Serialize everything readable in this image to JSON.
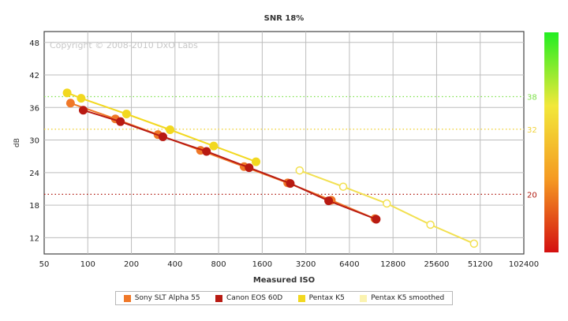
{
  "chart_data": {
    "type": "line",
    "title": "SNR 18%",
    "xlabel": "Measured ISO",
    "ylabel": "dB",
    "x_scale": "log2",
    "xlim": [
      50,
      102400
    ],
    "ylim": [
      9,
      50
    ],
    "x_ticks": [
      "50",
      "100",
      "200",
      "400",
      "800",
      "1600",
      "3200",
      "6400",
      "12800",
      "25600",
      "51200",
      "102400"
    ],
    "y_ticks": [
      "12",
      "18",
      "24",
      "30",
      "36",
      "42",
      "48"
    ],
    "watermark": "Copyright © 2008-2010 DxO Labs",
    "grid": true,
    "reference_lines": [
      {
        "value": 38,
        "label": "38",
        "color": "#7ee04a"
      },
      {
        "value": 32,
        "label": "32",
        "color": "#f0d23a"
      },
      {
        "value": 20,
        "label": "20",
        "color": "#b01a10"
      }
    ],
    "color_scale": {
      "colors": [
        "#22ee22",
        "#f2e83a",
        "#f59a22",
        "#d41010"
      ]
    },
    "series": [
      {
        "name": "Sony SLT Alpha 55",
        "color": "#f07828",
        "marker": "filled",
        "x": [
          76,
          155,
          305,
          600,
          1200,
          2400,
          4800,
          9600
        ],
        "y": [
          36.8,
          33.9,
          31.0,
          28.1,
          25.1,
          22.1,
          18.9,
          15.5
        ]
      },
      {
        "name": "Canon EOS 60D",
        "color": "#b81a12",
        "marker": "filled",
        "x": [
          93,
          168,
          330,
          660,
          1300,
          2500,
          4600,
          9800
        ],
        "y": [
          35.5,
          33.4,
          30.6,
          27.9,
          24.9,
          22.0,
          18.8,
          15.4
        ]
      },
      {
        "name": "Pentax K5",
        "color": "#f2d820",
        "marker": "filled",
        "x": [
          72,
          90,
          185,
          370,
          740,
          1450
        ],
        "y": [
          38.7,
          37.7,
          34.8,
          31.9,
          28.9,
          26.0
        ]
      },
      {
        "name": "Pentax K5 smoothed",
        "color": "#f2e050",
        "marker": "open",
        "x": [
          2900,
          5800,
          11600,
          23200,
          46400
        ],
        "y": [
          24.4,
          21.4,
          18.3,
          14.4,
          10.9
        ]
      }
    ]
  }
}
